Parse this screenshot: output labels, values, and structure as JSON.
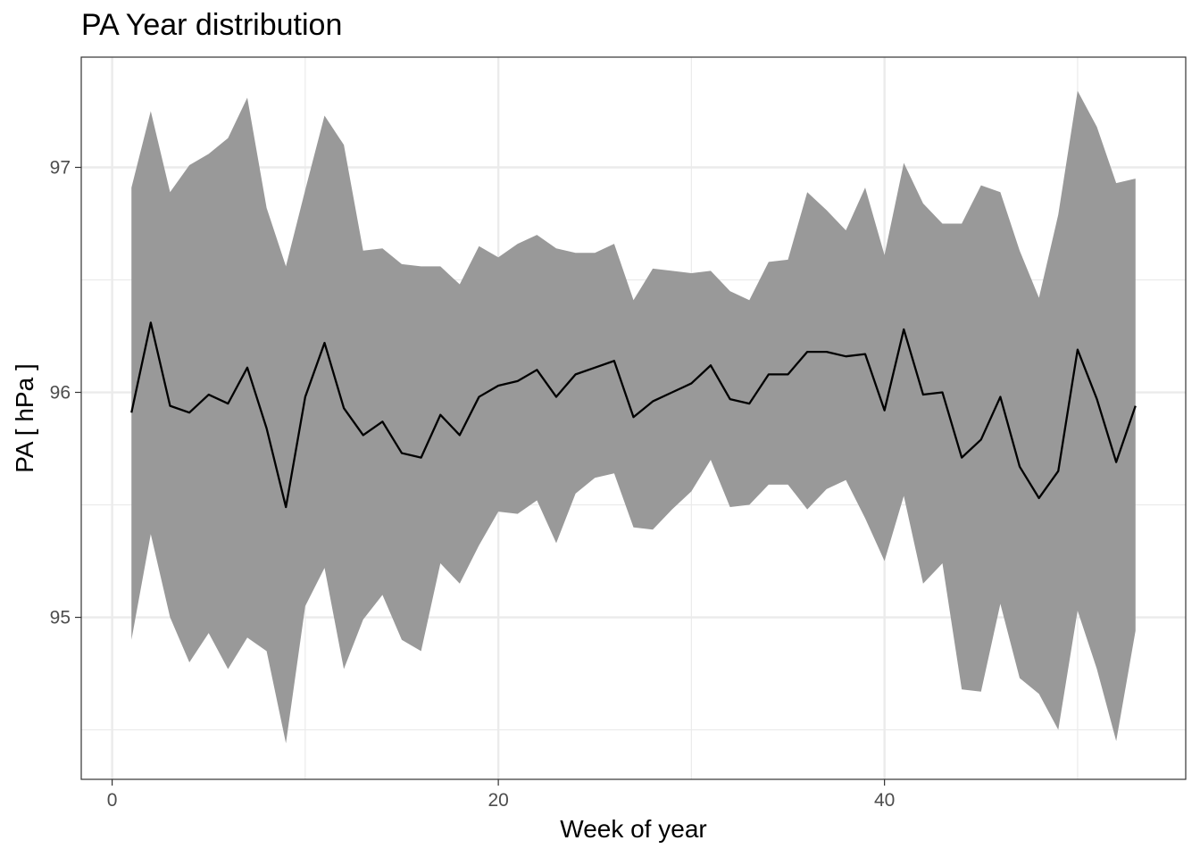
{
  "chart_data": {
    "type": "area",
    "title": "PA Year distribution",
    "xlabel": "Week of year",
    "ylabel": "PA [ hPa ]",
    "xlim": [
      -1.6,
      55.6
    ],
    "ylim": [
      94.28,
      97.49
    ],
    "x_ticks": [
      0,
      20,
      40
    ],
    "y_ticks": [
      95,
      96,
      97
    ],
    "x_tick_labels": [
      "0",
      "20",
      "40"
    ],
    "y_tick_labels": [
      "95",
      "96",
      "97"
    ],
    "grid": true,
    "legend": "none",
    "colors": {
      "band": "#999999",
      "line": "#000000",
      "grid": "#ebebeb",
      "border": "#333333"
    },
    "series": [
      {
        "type": "line",
        "x": [
          1,
          2,
          3,
          4,
          5,
          6,
          7,
          8,
          9,
          10,
          11,
          12,
          13,
          14,
          15,
          16,
          17,
          18,
          19,
          20,
          21,
          22,
          23,
          24,
          25,
          26,
          27,
          28,
          29,
          30,
          31,
          32,
          33,
          34,
          35,
          36,
          37,
          38,
          39,
          40,
          41,
          42,
          43,
          44,
          45,
          46,
          47,
          48,
          49,
          50,
          51,
          52,
          53
        ],
        "values": [
          95.91,
          96.31,
          95.94,
          95.91,
          95.99,
          95.95,
          96.11,
          95.84,
          95.49,
          95.98,
          96.22,
          95.93,
          95.81,
          95.87,
          95.73,
          95.71,
          95.9,
          95.81,
          95.98,
          96.03,
          96.05,
          96.1,
          95.98,
          96.08,
          96.11,
          96.14,
          95.89,
          95.96,
          96.0,
          96.04,
          96.12,
          95.97,
          95.95,
          96.08,
          96.08,
          96.18,
          96.18,
          96.16,
          96.17,
          95.92,
          96.28,
          95.99,
          96.0,
          95.71,
          95.79,
          95.98,
          95.67,
          95.53,
          95.65,
          96.19,
          95.97,
          95.69,
          95.94
        ]
      },
      {
        "type": "band",
        "x": [
          1,
          2,
          3,
          4,
          5,
          6,
          7,
          8,
          9,
          10,
          11,
          12,
          13,
          14,
          15,
          16,
          17,
          18,
          19,
          20,
          21,
          22,
          23,
          24,
          25,
          26,
          27,
          28,
          29,
          30,
          31,
          32,
          33,
          34,
          35,
          36,
          37,
          38,
          39,
          40,
          41,
          42,
          43,
          44,
          45,
          46,
          47,
          48,
          49,
          50,
          51,
          52,
          53
        ],
        "upper": [
          96.91,
          97.25,
          96.89,
          97.01,
          97.06,
          97.13,
          97.31,
          96.82,
          96.56,
          96.9,
          97.23,
          97.1,
          96.63,
          96.64,
          96.57,
          96.56,
          96.56,
          96.48,
          96.65,
          96.6,
          96.66,
          96.7,
          96.64,
          96.62,
          96.62,
          96.66,
          96.41,
          96.55,
          96.54,
          96.53,
          96.54,
          96.45,
          96.41,
          96.58,
          96.59,
          96.89,
          96.81,
          96.72,
          96.91,
          96.61,
          97.02,
          96.84,
          96.75,
          96.75,
          96.92,
          96.89,
          96.63,
          96.42,
          96.79,
          97.34,
          97.18,
          96.93,
          96.95
        ],
        "lower": [
          94.9,
          95.37,
          95.0,
          94.8,
          94.93,
          94.77,
          94.91,
          94.85,
          94.44,
          95.05,
          95.22,
          94.77,
          94.99,
          95.1,
          94.9,
          94.85,
          95.24,
          95.15,
          95.32,
          95.47,
          95.46,
          95.52,
          95.33,
          95.55,
          95.62,
          95.64,
          95.4,
          95.39,
          95.48,
          95.56,
          95.7,
          95.49,
          95.5,
          95.59,
          95.59,
          95.48,
          95.57,
          95.61,
          95.44,
          95.25,
          95.54,
          95.15,
          95.24,
          94.68,
          94.67,
          95.06,
          94.73,
          94.66,
          94.5,
          95.03,
          94.77,
          94.45,
          94.94
        ]
      }
    ]
  }
}
